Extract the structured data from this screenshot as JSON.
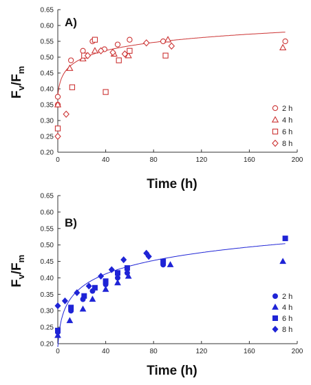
{
  "chart_data": [
    {
      "type": "scatter",
      "panel_label": "A)",
      "color": "#cc3333",
      "filled": false,
      "xlabel": "Time (h)",
      "ylabel": {
        "main": "F",
        "sub1": "v",
        "slash": "/F",
        "sub2": "m"
      },
      "xlim": [
        0,
        200
      ],
      "ylim": [
        0.2,
        0.65
      ],
      "xticks": [
        "0",
        "40",
        "80",
        "120",
        "160",
        "200"
      ],
      "yticks": [
        "0.20",
        "0.25",
        "0.30",
        "0.35",
        "0.40",
        "0.45",
        "0.50",
        "0.55",
        "0.60",
        "0.65"
      ],
      "legend_position": "right",
      "series": [
        {
          "name": "2 h",
          "marker": "circle",
          "points": [
            [
              0,
              0.375
            ],
            [
              0,
              0.35
            ],
            [
              11,
              0.49
            ],
            [
              21,
              0.52
            ],
            [
              29,
              0.55
            ],
            [
              39,
              0.525
            ],
            [
              50,
              0.54
            ],
            [
              60,
              0.555
            ],
            [
              88,
              0.55
            ],
            [
              190,
              0.55
            ]
          ]
        },
        {
          "name": "4 h",
          "marker": "triangle",
          "points": [
            [
              0,
              0.35
            ],
            [
              10,
              0.465
            ],
            [
              21,
              0.495
            ],
            [
              31,
              0.52
            ],
            [
              47,
              0.51
            ],
            [
              59,
              0.505
            ],
            [
              92,
              0.555
            ],
            [
              188,
              0.53
            ]
          ]
        },
        {
          "name": "6 h",
          "marker": "square",
          "points": [
            [
              0,
              0.275
            ],
            [
              12,
              0.405
            ],
            [
              22,
              0.505
            ],
            [
              31,
              0.555
            ],
            [
              40,
              0.39
            ],
            [
              51,
              0.49
            ],
            [
              60,
              0.52
            ],
            [
              90,
              0.505
            ]
          ]
        },
        {
          "name": "8 h",
          "marker": "diamond",
          "points": [
            [
              0,
              0.25
            ],
            [
              7,
              0.32
            ],
            [
              25,
              0.505
            ],
            [
              36,
              0.52
            ],
            [
              46,
              0.515
            ],
            [
              56,
              0.51
            ],
            [
              74,
              0.545
            ],
            [
              95,
              0.535
            ]
          ]
        }
      ],
      "trend": {
        "a": 0.38,
        "b": 0.0379,
        "c": 1
      }
    },
    {
      "type": "scatter",
      "panel_label": "B)",
      "color": "#1f24d6",
      "filled": true,
      "xlabel": "Time (h)",
      "ylabel": {
        "main": "F",
        "sub1": "v",
        "slash": "/F",
        "sub2": "m"
      },
      "xlim": [
        0,
        200
      ],
      "ylim": [
        0.2,
        0.65
      ],
      "xticks": [
        "0",
        "40",
        "80",
        "120",
        "160",
        "200"
      ],
      "yticks": [
        "0.20",
        "0.25",
        "0.30",
        "0.35",
        "0.40",
        "0.45",
        "0.50",
        "0.55",
        "0.60",
        "0.65"
      ],
      "legend_position": "bottom-right",
      "series": [
        {
          "name": "2 h",
          "marker": "circle",
          "points": [
            [
              0,
              0.235
            ],
            [
              11,
              0.3
            ],
            [
              21,
              0.335
            ],
            [
              29,
              0.36
            ],
            [
              40,
              0.38
            ],
            [
              50,
              0.4
            ],
            [
              58,
              0.415
            ],
            [
              88,
              0.44
            ]
          ]
        },
        {
          "name": "4 h",
          "marker": "triangle",
          "points": [
            [
              0,
              0.225
            ],
            [
              10,
              0.27
            ],
            [
              21,
              0.305
            ],
            [
              29,
              0.335
            ],
            [
              40,
              0.365
            ],
            [
              50,
              0.385
            ],
            [
              59,
              0.405
            ],
            [
              94,
              0.44
            ],
            [
              188,
              0.45
            ]
          ]
        },
        {
          "name": "6 h",
          "marker": "square",
          "points": [
            [
              0,
              0.24
            ],
            [
              11,
              0.31
            ],
            [
              22,
              0.345
            ],
            [
              31,
              0.37
            ],
            [
              40,
              0.39
            ],
            [
              50,
              0.415
            ],
            [
              58,
              0.43
            ],
            [
              88,
              0.45
            ],
            [
              190,
              0.52
            ]
          ]
        },
        {
          "name": "8 h",
          "marker": "diamond",
          "points": [
            [
              0,
              0.315
            ],
            [
              6,
              0.33
            ],
            [
              16,
              0.355
            ],
            [
              26,
              0.375
            ],
            [
              36,
              0.405
            ],
            [
              45,
              0.425
            ],
            [
              55,
              0.455
            ],
            [
              74,
              0.475
            ],
            [
              76,
              0.465
            ]
          ]
        }
      ],
      "trend": {
        "a": 0.19,
        "b": 0.0598,
        "c": 1
      }
    }
  ]
}
